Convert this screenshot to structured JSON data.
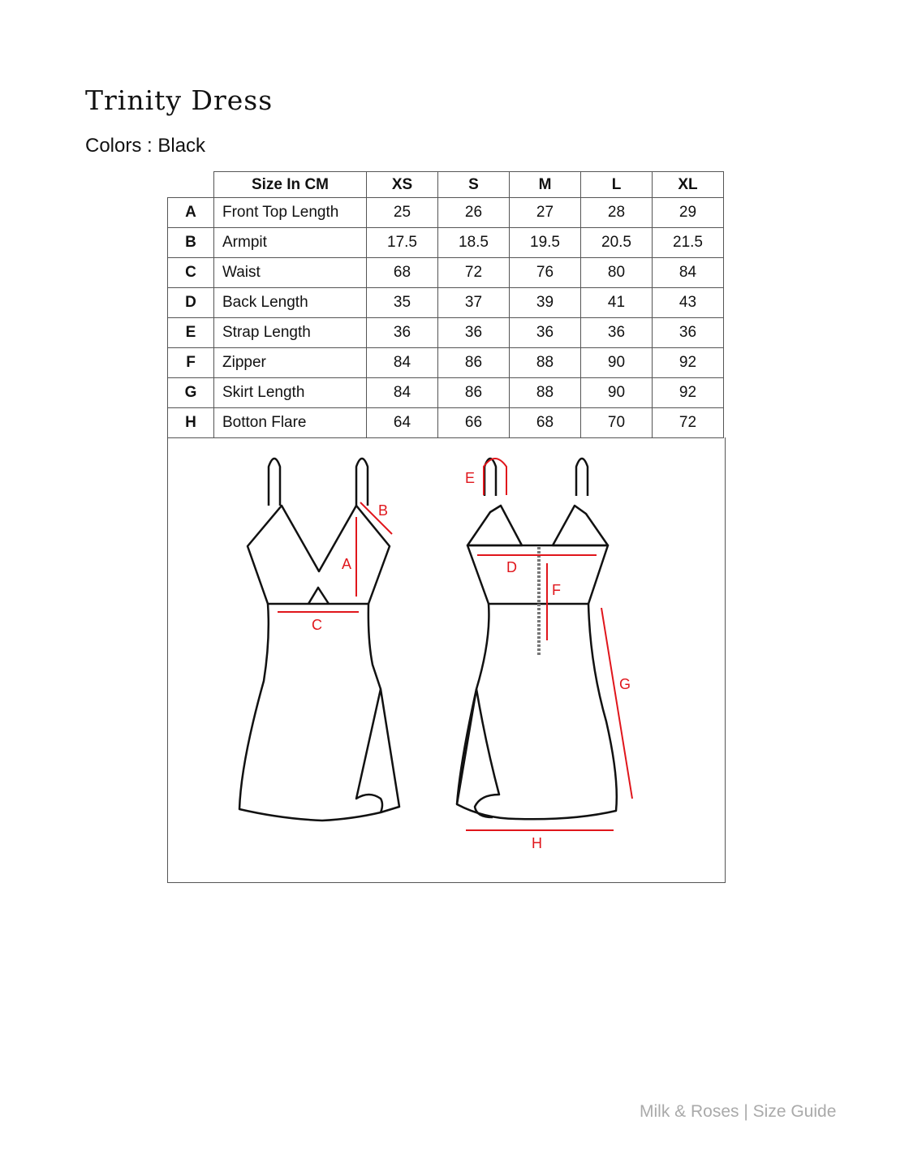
{
  "title": "Trinity Dress",
  "colors": "Colors : Black",
  "table": {
    "header": [
      "Size In CM",
      "XS",
      "S",
      "M",
      "L",
      "XL"
    ],
    "rows": [
      {
        "letter": "A",
        "name": "Front Top Length",
        "values": [
          "25",
          "26",
          "27",
          "28",
          "29"
        ]
      },
      {
        "letter": "B",
        "name": "Armpit",
        "values": [
          "17.5",
          "18.5",
          "19.5",
          "20.5",
          "21.5"
        ]
      },
      {
        "letter": "C",
        "name": "Waist",
        "values": [
          "68",
          "72",
          "76",
          "80",
          "84"
        ]
      },
      {
        "letter": "D",
        "name": "Back Length",
        "values": [
          "35",
          "37",
          "39",
          "41",
          "43"
        ]
      },
      {
        "letter": "E",
        "name": "Strap Length",
        "values": [
          "36",
          "36",
          "36",
          "36",
          "36"
        ]
      },
      {
        "letter": "F",
        "name": "Zipper",
        "values": [
          "84",
          "86",
          "88",
          "90",
          "92"
        ]
      },
      {
        "letter": "G",
        "name": "Skirt Length",
        "values": [
          "84",
          "86",
          "88",
          "90",
          "92"
        ]
      },
      {
        "letter": "H",
        "name": "Botton Flare",
        "values": [
          "64",
          "66",
          "68",
          "70",
          "72"
        ]
      }
    ]
  },
  "diagram": {
    "labels": {
      "A": "A",
      "B": "B",
      "C": "C",
      "D": "D",
      "E": "E",
      "F": "F",
      "G": "G",
      "H": "H"
    },
    "measure_color": "#e0161c"
  },
  "footer": "Milk & Roses | Size Guide"
}
